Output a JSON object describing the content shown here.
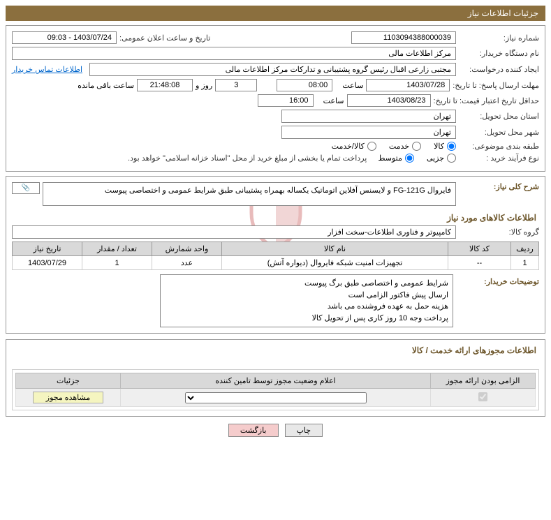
{
  "header": {
    "title": "جزئیات اطلاعات نیاز"
  },
  "fields": {
    "need_number_label": "شماره نیاز:",
    "need_number": "1103094388000039",
    "announce_label": "تاریخ و ساعت اعلان عمومی:",
    "announce_value": "1403/07/24 - 09:03",
    "buyer_org_label": "نام دستگاه خریدار:",
    "buyer_org": "مرکز اطلاعات مالی",
    "requester_label": "ایجاد کننده درخواست:",
    "requester": "مجتبی زارعی اقبال رئیس گروه پشتیبانی و تدارکات مرکز اطلاعات مالی",
    "contact_link": "اطلاعات تماس خریدار",
    "deadline_label": "مهلت ارسال پاسخ: تا تاریخ:",
    "deadline_date": "1403/07/28",
    "hour_label": "ساعت",
    "deadline_hour": "08:00",
    "days_remain": "3",
    "days_and": "روز و",
    "time_remain": "21:48:08",
    "remain_suffix": "ساعت باقی مانده",
    "validity_label": "حداقل تاریخ اعتبار قیمت: تا تاریخ:",
    "validity_date": "1403/08/23",
    "validity_hour": "16:00",
    "province_label": "استان محل تحویل:",
    "province": "تهران",
    "city_label": "شهر محل تحویل:",
    "city": "تهران",
    "category_label": "طبقه بندی موضوعی:",
    "cat_goods": "کالا",
    "cat_service": "خدمت",
    "cat_both": "کالا/خدمت",
    "purchase_type_label": "نوع فرآیند خرید :",
    "pt_partial": "جزیی",
    "pt_medium": "متوسط",
    "purchase_note": "پرداخت تمام یا بخشی از مبلغ خرید از محل \"اسناد خزانه اسلامی\" خواهد بود."
  },
  "description": {
    "title_label": "شرح کلی نیاز:",
    "text": "فایروال FG-121G و لایسنس آفلاین اتوماتیک یکساله بهمراه پشتیبانی طبق شرایط عمومی و اختصاصی پیوست",
    "goods_section_title": "اطلاعات کالاهای مورد نیاز",
    "goods_group_label": "گروه کالا:",
    "goods_group": "کامپیوتر و فناوری اطلاعات-سخت افزار"
  },
  "table": {
    "headers": {
      "row": "ردیف",
      "code": "کد کالا",
      "name": "نام کالا",
      "unit": "واحد شمارش",
      "qty": "تعداد / مقدار",
      "date": "تاریخ نیاز"
    },
    "rows": [
      {
        "row": "1",
        "code": "--",
        "name": "تجهیزات امنیت شبکه فایروال (دیواره آتش)",
        "unit": "عدد",
        "qty": "1",
        "date": "1403/07/29"
      }
    ]
  },
  "buyer_desc": {
    "label": "توضیحات خریدار:",
    "text": "شرایط عمومی و اختصاصی طبق برگ پیوست\nارسال پیش فاکتور الزامی است\nهزینه حمل به عهده فروشنده می باشد\nپرداخت وجه 10 روز کاری پس از تحویل کالا"
  },
  "license": {
    "section_title": "اطلاعات مجوزهای ارائه خدمت / کالا",
    "headers": {
      "mandatory": "الزامی بودن ارائه مجوز",
      "status": "اعلام وضعیت مجوز توسط تامین کننده",
      "details": "جزئیات"
    },
    "view_btn": "مشاهده مجوز"
  },
  "footer": {
    "print": "چاپ",
    "back": "بازگشت"
  },
  "colors": {
    "header_bg": "#8b6f3e",
    "section_title": "#6b5428",
    "link": "#0066cc",
    "th_bg": "#d9d9d9",
    "btn_back_bg": "#f5cccc",
    "btn_view_bg": "#f5f5c0"
  }
}
